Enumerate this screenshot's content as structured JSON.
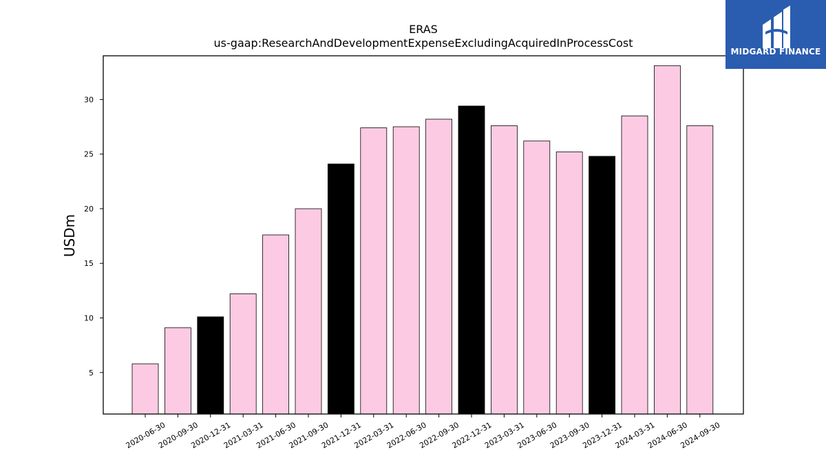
{
  "chart_data": {
    "type": "bar",
    "title": "ERAS",
    "subtitle": "us-gaap:ResearchAndDevelopmentExpenseExcludingAcquiredInProcessCost",
    "xlabel": "",
    "ylabel": "USDm",
    "ylim": [
      1.2,
      34.0
    ],
    "yticks": [
      5,
      10,
      15,
      20,
      25,
      30
    ],
    "grid": false,
    "categories": [
      "2020-06-30",
      "2020-09-30",
      "2020-12-31",
      "2021-03-31",
      "2021-06-30",
      "2021-09-30",
      "2021-12-31",
      "2022-03-31",
      "2022-06-30",
      "2022-09-30",
      "2022-12-31",
      "2023-03-31",
      "2023-06-30",
      "2023-09-30",
      "2023-12-31",
      "2024-03-31",
      "2024-06-30",
      "2024-09-30"
    ],
    "values": [
      5.8,
      9.1,
      10.1,
      12.2,
      17.6,
      20.0,
      24.1,
      27.4,
      27.5,
      28.2,
      29.4,
      27.6,
      26.2,
      25.2,
      24.8,
      28.5,
      33.1,
      27.6
    ],
    "bar_colors": [
      "#fccbe3",
      "#fccbe3",
      "#000000",
      "#fccbe3",
      "#fccbe3",
      "#fccbe3",
      "#000000",
      "#fccbe3",
      "#fccbe3",
      "#fccbe3",
      "#000000",
      "#fccbe3",
      "#fccbe3",
      "#fccbe3",
      "#000000",
      "#fccbe3",
      "#fccbe3",
      "#fccbe3"
    ]
  },
  "logo": {
    "text": "MIDGARD FINANCE",
    "background": "#2a5db0"
  }
}
